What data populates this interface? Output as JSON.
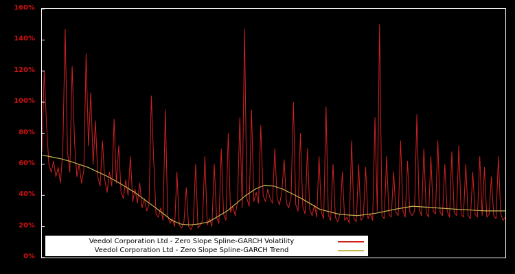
{
  "figure": {
    "background": "#000000",
    "plot_border_color": "#ffffff",
    "tick_label_color": "#cc1111"
  },
  "chart_data": {
    "type": "line",
    "title": "",
    "xlabel": "",
    "ylabel": "",
    "ylim": [
      0,
      160
    ],
    "grid": false,
    "legend_position": "bottom-center",
    "yticks": {
      "values": [
        0,
        20,
        40,
        60,
        80,
        100,
        120,
        140,
        160
      ],
      "labels": [
        "0%",
        "20%",
        "40%",
        "60%",
        "80%",
        "100%",
        "120%",
        "140%",
        "160%"
      ]
    },
    "series": [
      {
        "name": "Veedol Corporation Ltd - Zero Slope Spline-GARCH Volatility",
        "color": "#d42222",
        "stroke_width": 1,
        "values": [
          68,
          120,
          85,
          60,
          55,
          62,
          52,
          58,
          48,
          70,
          147,
          68,
          55,
          123,
          75,
          52,
          60,
          48,
          56,
          131,
          72,
          106,
          60,
          88,
          52,
          46,
          75,
          50,
          42,
          55,
          46,
          89,
          48,
          72,
          42,
          38,
          50,
          40,
          65,
          36,
          44,
          35,
          48,
          32,
          38,
          30,
          34,
          104,
          63,
          28,
          26,
          32,
          24,
          95,
          27,
          22,
          25,
          20,
          55,
          21,
          19,
          23,
          45,
          20,
          18,
          22,
          60,
          19,
          21,
          24,
          65,
          21,
          25,
          20,
          60,
          26,
          22,
          70,
          28,
          24,
          80,
          29,
          33,
          27,
          36,
          90,
          32,
          147,
          38,
          33,
          95,
          36,
          42,
          35,
          85,
          40,
          36,
          44,
          38,
          35,
          70,
          38,
          34,
          42,
          63,
          35,
          32,
          39,
          100,
          34,
          30,
          80,
          33,
          28,
          70,
          31,
          27,
          34,
          26,
          65,
          29,
          25,
          97,
          27,
          24,
          60,
          26,
          23,
          28,
          55,
          24,
          26,
          22,
          75,
          25,
          23,
          60,
          24,
          26,
          58,
          25,
          28,
          24,
          90,
          30,
          150,
          27,
          25,
          65,
          28,
          26,
          55,
          29,
          27,
          75,
          30,
          26,
          62,
          29,
          27,
          30,
          92,
          31,
          27,
          70,
          29,
          26,
          65,
          30,
          28,
          75,
          29,
          27,
          60,
          30,
          26,
          68,
          29,
          27,
          72,
          28,
          26,
          60,
          27,
          25,
          55,
          28,
          26,
          65,
          27,
          58,
          26,
          28,
          52,
          27,
          25,
          65,
          28,
          24,
          26
        ]
      },
      {
        "name": "Veedol Corporation Ltd - Zero Slope Spline-GARCH Trend",
        "color": "#c8b850",
        "stroke_width": 1.2,
        "values": [
          66.0,
          64.8,
          63.6,
          62.0,
          60.0,
          58.0,
          55.2,
          52.4,
          49.2,
          45.6,
          42.0,
          37.6,
          33.2,
          28.7,
          24.0,
          21.5,
          21.0,
          21.7,
          23.0,
          26.5,
          30.0,
          35.0,
          40.0,
          44.0,
          46.5,
          46.0,
          44.0,
          41.0,
          38.0,
          34.5,
          31.0,
          29.5,
          28.0,
          27.4,
          27.0,
          27.7,
          28.5,
          29.7,
          31.0,
          32.0,
          33.0,
          32.6,
          32.2,
          31.8,
          31.4,
          31.0,
          30.7,
          30.3,
          30.0,
          30.0,
          30.0
        ]
      }
    ]
  },
  "legend": {
    "background": "#ffffff",
    "text_color": "#000000"
  }
}
